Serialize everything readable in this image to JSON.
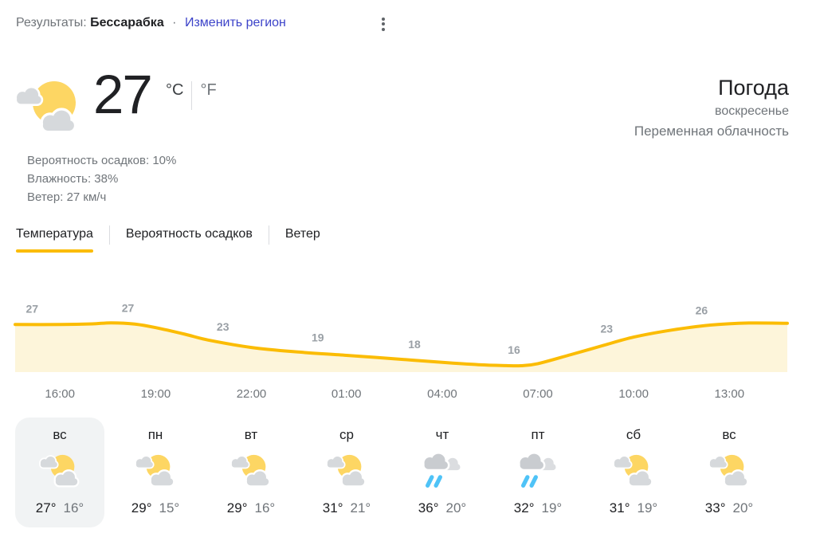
{
  "result_bar": {
    "label": "Результаты:",
    "location": "Бессарабка",
    "separator": "·",
    "change_region": "Изменить регион"
  },
  "current": {
    "temperature": "27",
    "unit_c": "°C",
    "unit_f": "°F",
    "title": "Погода",
    "day": "воскресенье",
    "condition": "Переменная облачность",
    "precipitation": "Вероятность осадков: 10%",
    "humidity": "Влажность: 38%",
    "wind": "Ветер: 27 км/ч",
    "icon": "partly-cloudy"
  },
  "tabs": [
    {
      "label": "Температура",
      "active": true
    },
    {
      "label": "Вероятность осадков",
      "active": false
    },
    {
      "label": "Ветер",
      "active": false
    }
  ],
  "chart_data": {
    "type": "area",
    "series_name": "Температура",
    "categories": [
      "16:00",
      "19:00",
      "22:00",
      "01:00",
      "04:00",
      "07:00",
      "10:00",
      "13:00"
    ],
    "values": [
      27,
      27,
      23,
      19,
      18,
      16,
      23,
      26
    ],
    "unit": "°C",
    "ylim": [
      14,
      29
    ],
    "grid": false,
    "legend": false,
    "line_color": "#fbbc04",
    "fill_color": "#fdf5da",
    "label_color": "#9aa0a6",
    "tick_points": [
      {
        "label": "16:00",
        "x": 0.058
      },
      {
        "label": "19:00",
        "x": 0.182
      },
      {
        "label": "22:00",
        "x": 0.306
      },
      {
        "label": "01:00",
        "x": 0.429
      },
      {
        "label": "04:00",
        "x": 0.553
      },
      {
        "label": "07:00",
        "x": 0.677
      },
      {
        "label": "10:00",
        "x": 0.801
      },
      {
        "label": "13:00",
        "x": 0.925
      }
    ],
    "label_points": [
      {
        "value": 27,
        "x": 0.022
      },
      {
        "value": 27,
        "x": 0.146
      },
      {
        "value": 23,
        "x": 0.269
      },
      {
        "value": 19,
        "x": 0.392
      },
      {
        "value": 18,
        "x": 0.517
      },
      {
        "value": 16,
        "x": 0.646
      },
      {
        "value": 23,
        "x": 0.766
      },
      {
        "value": 26,
        "x": 0.889
      }
    ],
    "curve_samples": [
      {
        "x": 0.0,
        "t": 27.05
      },
      {
        "x": 0.06,
        "t": 27.05
      },
      {
        "x": 0.1,
        "t": 27.2
      },
      {
        "x": 0.125,
        "t": 27.45
      },
      {
        "x": 0.155,
        "t": 27.15
      },
      {
        "x": 0.182,
        "t": 26.3
      },
      {
        "x": 0.22,
        "t": 24.7
      },
      {
        "x": 0.25,
        "t": 23.3
      },
      {
        "x": 0.306,
        "t": 21.5
      },
      {
        "x": 0.36,
        "t": 20.5
      },
      {
        "x": 0.429,
        "t": 19.6
      },
      {
        "x": 0.49,
        "t": 18.8
      },
      {
        "x": 0.553,
        "t": 17.9
      },
      {
        "x": 0.6,
        "t": 17.35
      },
      {
        "x": 0.63,
        "t": 17.15
      },
      {
        "x": 0.655,
        "t": 17.1
      },
      {
        "x": 0.677,
        "t": 17.6
      },
      {
        "x": 0.72,
        "t": 19.8
      },
      {
        "x": 0.76,
        "t": 21.9
      },
      {
        "x": 0.801,
        "t": 24.0
      },
      {
        "x": 0.85,
        "t": 25.7
      },
      {
        "x": 0.9,
        "t": 26.9
      },
      {
        "x": 0.95,
        "t": 27.4
      },
      {
        "x": 1.0,
        "t": 27.35
      }
    ]
  },
  "forecast": {
    "days": [
      {
        "label": "вс",
        "icon": "partly-cloudy",
        "high": "27°",
        "low": "16°",
        "active": true
      },
      {
        "label": "пн",
        "icon": "partly-cloudy",
        "high": "29°",
        "low": "15°",
        "active": false
      },
      {
        "label": "вт",
        "icon": "partly-cloudy",
        "high": "29°",
        "low": "16°",
        "active": false
      },
      {
        "label": "ср",
        "icon": "partly-cloudy",
        "high": "31°",
        "low": "21°",
        "active": false
      },
      {
        "label": "чт",
        "icon": "rain",
        "high": "36°",
        "low": "20°",
        "active": false
      },
      {
        "label": "пт",
        "icon": "rain",
        "high": "32°",
        "low": "19°",
        "active": false
      },
      {
        "label": "сб",
        "icon": "partly-cloudy",
        "high": "31°",
        "low": "19°",
        "active": false
      },
      {
        "label": "вс",
        "icon": "partly-cloudy",
        "high": "33°",
        "low": "20°",
        "active": false
      }
    ]
  },
  "colors": {
    "accent_yellow": "#fbbc04",
    "chart_fill": "#fdf5da",
    "sun": "#fdd663",
    "cloud": "#d6d9dc",
    "rain_cloud_front": "#c9ccd0",
    "rain_drop": "#4fc3f7",
    "link": "#3c43c9",
    "text_dark": "#202124",
    "text_gray": "#70757a",
    "chart_label_gray": "#9aa0a6",
    "active_day_bg": "#f1f3f4"
  }
}
